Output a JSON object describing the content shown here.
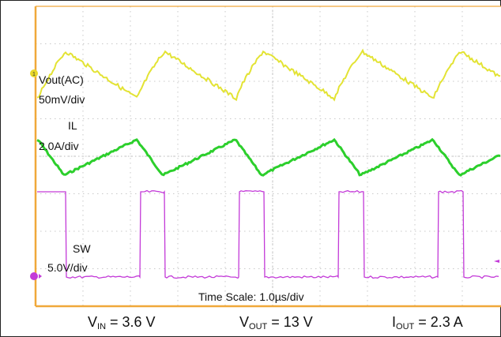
{
  "chart_data": {
    "type": "line",
    "title": "",
    "time_scale": "Time Scale: 1.0µs/div",
    "grid": true,
    "x_divisions": 10,
    "y_divisions": 8,
    "channels": [
      {
        "label": "Vout(AC)",
        "scale": "50mV/div",
        "color": "#e3e334",
        "marker": "1",
        "waveform": "sawtooth ripple, ~0.5 div peak-to-peak, steep rise then slow decay"
      },
      {
        "label": "IL",
        "scale": "2.0A/div",
        "color": "#2ccf2c",
        "waveform": "triangle, ~0.6 div peak-to-peak, ~3.3 div period"
      },
      {
        "label": "SW",
        "scale": "5.0V/div",
        "color": "#c33ad8",
        "waveform": "square, ~2.3 div amplitude, low ~0.3 div of each ~3.3 div period"
      }
    ]
  },
  "conditions": {
    "vin_main": "V",
    "vin_sub": "IN",
    "vin_value": " = 3.6 V",
    "vout_main": "V",
    "vout_sub": "OUT",
    "vout_value": " = 13 V",
    "iout_main": "I",
    "iout_sub": "OUT",
    "iout_value": " = 2.3 A"
  }
}
